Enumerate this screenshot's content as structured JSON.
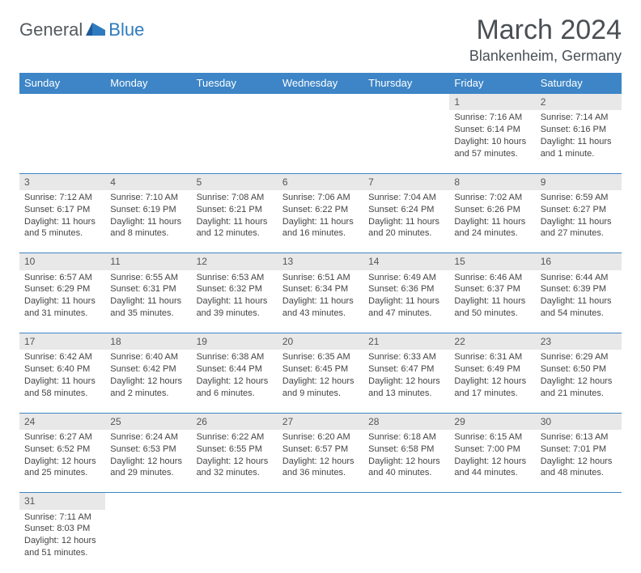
{
  "logo": {
    "part1": "General",
    "part2": "Blue"
  },
  "title": "March 2024",
  "location": "Blankenheim, Germany",
  "colors": {
    "header_bg": "#3d85c6",
    "header_text": "#ffffff",
    "daynum_bg": "#e8e8e8",
    "row_border": "#3d85c6",
    "text": "#444444",
    "title_color": "#4a4f54",
    "logo_gray": "#555a5e",
    "logo_blue": "#2f7bbf"
  },
  "weekdays": [
    "Sunday",
    "Monday",
    "Tuesday",
    "Wednesday",
    "Thursday",
    "Friday",
    "Saturday"
  ],
  "weeks": [
    [
      null,
      null,
      null,
      null,
      null,
      {
        "n": "1",
        "sunrise": "Sunrise: 7:16 AM",
        "sunset": "Sunset: 6:14 PM",
        "day1": "Daylight: 10 hours",
        "day2": "and 57 minutes."
      },
      {
        "n": "2",
        "sunrise": "Sunrise: 7:14 AM",
        "sunset": "Sunset: 6:16 PM",
        "day1": "Daylight: 11 hours",
        "day2": "and 1 minute."
      }
    ],
    [
      {
        "n": "3",
        "sunrise": "Sunrise: 7:12 AM",
        "sunset": "Sunset: 6:17 PM",
        "day1": "Daylight: 11 hours",
        "day2": "and 5 minutes."
      },
      {
        "n": "4",
        "sunrise": "Sunrise: 7:10 AM",
        "sunset": "Sunset: 6:19 PM",
        "day1": "Daylight: 11 hours",
        "day2": "and 8 minutes."
      },
      {
        "n": "5",
        "sunrise": "Sunrise: 7:08 AM",
        "sunset": "Sunset: 6:21 PM",
        "day1": "Daylight: 11 hours",
        "day2": "and 12 minutes."
      },
      {
        "n": "6",
        "sunrise": "Sunrise: 7:06 AM",
        "sunset": "Sunset: 6:22 PM",
        "day1": "Daylight: 11 hours",
        "day2": "and 16 minutes."
      },
      {
        "n": "7",
        "sunrise": "Sunrise: 7:04 AM",
        "sunset": "Sunset: 6:24 PM",
        "day1": "Daylight: 11 hours",
        "day2": "and 20 minutes."
      },
      {
        "n": "8",
        "sunrise": "Sunrise: 7:02 AM",
        "sunset": "Sunset: 6:26 PM",
        "day1": "Daylight: 11 hours",
        "day2": "and 24 minutes."
      },
      {
        "n": "9",
        "sunrise": "Sunrise: 6:59 AM",
        "sunset": "Sunset: 6:27 PM",
        "day1": "Daylight: 11 hours",
        "day2": "and 27 minutes."
      }
    ],
    [
      {
        "n": "10",
        "sunrise": "Sunrise: 6:57 AM",
        "sunset": "Sunset: 6:29 PM",
        "day1": "Daylight: 11 hours",
        "day2": "and 31 minutes."
      },
      {
        "n": "11",
        "sunrise": "Sunrise: 6:55 AM",
        "sunset": "Sunset: 6:31 PM",
        "day1": "Daylight: 11 hours",
        "day2": "and 35 minutes."
      },
      {
        "n": "12",
        "sunrise": "Sunrise: 6:53 AM",
        "sunset": "Sunset: 6:32 PM",
        "day1": "Daylight: 11 hours",
        "day2": "and 39 minutes."
      },
      {
        "n": "13",
        "sunrise": "Sunrise: 6:51 AM",
        "sunset": "Sunset: 6:34 PM",
        "day1": "Daylight: 11 hours",
        "day2": "and 43 minutes."
      },
      {
        "n": "14",
        "sunrise": "Sunrise: 6:49 AM",
        "sunset": "Sunset: 6:36 PM",
        "day1": "Daylight: 11 hours",
        "day2": "and 47 minutes."
      },
      {
        "n": "15",
        "sunrise": "Sunrise: 6:46 AM",
        "sunset": "Sunset: 6:37 PM",
        "day1": "Daylight: 11 hours",
        "day2": "and 50 minutes."
      },
      {
        "n": "16",
        "sunrise": "Sunrise: 6:44 AM",
        "sunset": "Sunset: 6:39 PM",
        "day1": "Daylight: 11 hours",
        "day2": "and 54 minutes."
      }
    ],
    [
      {
        "n": "17",
        "sunrise": "Sunrise: 6:42 AM",
        "sunset": "Sunset: 6:40 PM",
        "day1": "Daylight: 11 hours",
        "day2": "and 58 minutes."
      },
      {
        "n": "18",
        "sunrise": "Sunrise: 6:40 AM",
        "sunset": "Sunset: 6:42 PM",
        "day1": "Daylight: 12 hours",
        "day2": "and 2 minutes."
      },
      {
        "n": "19",
        "sunrise": "Sunrise: 6:38 AM",
        "sunset": "Sunset: 6:44 PM",
        "day1": "Daylight: 12 hours",
        "day2": "and 6 minutes."
      },
      {
        "n": "20",
        "sunrise": "Sunrise: 6:35 AM",
        "sunset": "Sunset: 6:45 PM",
        "day1": "Daylight: 12 hours",
        "day2": "and 9 minutes."
      },
      {
        "n": "21",
        "sunrise": "Sunrise: 6:33 AM",
        "sunset": "Sunset: 6:47 PM",
        "day1": "Daylight: 12 hours",
        "day2": "and 13 minutes."
      },
      {
        "n": "22",
        "sunrise": "Sunrise: 6:31 AM",
        "sunset": "Sunset: 6:49 PM",
        "day1": "Daylight: 12 hours",
        "day2": "and 17 minutes."
      },
      {
        "n": "23",
        "sunrise": "Sunrise: 6:29 AM",
        "sunset": "Sunset: 6:50 PM",
        "day1": "Daylight: 12 hours",
        "day2": "and 21 minutes."
      }
    ],
    [
      {
        "n": "24",
        "sunrise": "Sunrise: 6:27 AM",
        "sunset": "Sunset: 6:52 PM",
        "day1": "Daylight: 12 hours",
        "day2": "and 25 minutes."
      },
      {
        "n": "25",
        "sunrise": "Sunrise: 6:24 AM",
        "sunset": "Sunset: 6:53 PM",
        "day1": "Daylight: 12 hours",
        "day2": "and 29 minutes."
      },
      {
        "n": "26",
        "sunrise": "Sunrise: 6:22 AM",
        "sunset": "Sunset: 6:55 PM",
        "day1": "Daylight: 12 hours",
        "day2": "and 32 minutes."
      },
      {
        "n": "27",
        "sunrise": "Sunrise: 6:20 AM",
        "sunset": "Sunset: 6:57 PM",
        "day1": "Daylight: 12 hours",
        "day2": "and 36 minutes."
      },
      {
        "n": "28",
        "sunrise": "Sunrise: 6:18 AM",
        "sunset": "Sunset: 6:58 PM",
        "day1": "Daylight: 12 hours",
        "day2": "and 40 minutes."
      },
      {
        "n": "29",
        "sunrise": "Sunrise: 6:15 AM",
        "sunset": "Sunset: 7:00 PM",
        "day1": "Daylight: 12 hours",
        "day2": "and 44 minutes."
      },
      {
        "n": "30",
        "sunrise": "Sunrise: 6:13 AM",
        "sunset": "Sunset: 7:01 PM",
        "day1": "Daylight: 12 hours",
        "day2": "and 48 minutes."
      }
    ],
    [
      {
        "n": "31",
        "sunrise": "Sunrise: 7:11 AM",
        "sunset": "Sunset: 8:03 PM",
        "day1": "Daylight: 12 hours",
        "day2": "and 51 minutes."
      },
      null,
      null,
      null,
      null,
      null,
      null
    ]
  ]
}
